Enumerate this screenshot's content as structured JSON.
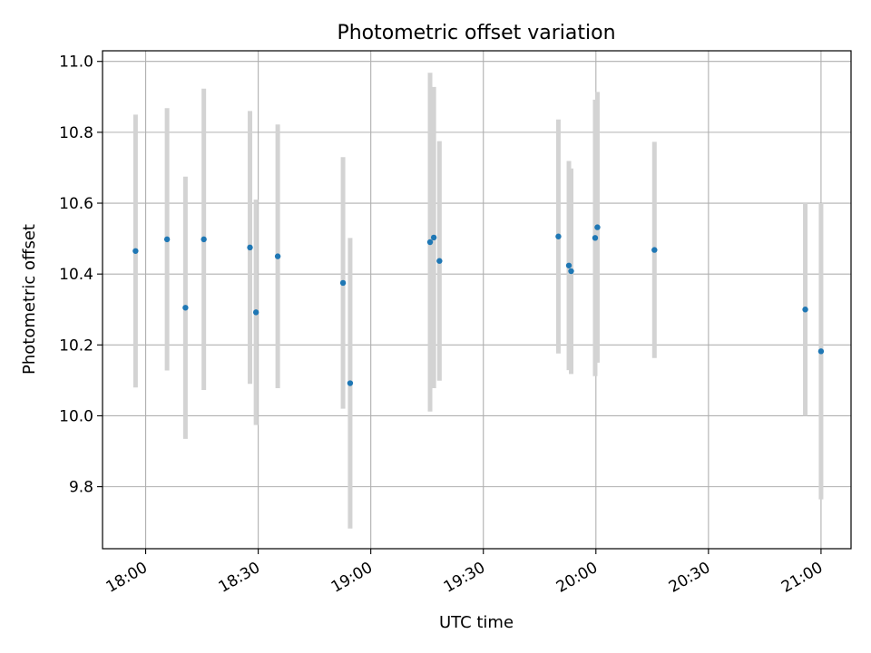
{
  "chart_data": {
    "type": "scatter",
    "title": "Photometric offset variation",
    "xlabel": "UTC time",
    "ylabel": "Photometric offset",
    "xlim_minutes": [
      1068.5,
      1268.0
    ],
    "ylim": [
      9.625,
      11.03
    ],
    "grid": true,
    "x_ticks": [
      {
        "minutes": 1080,
        "label": "18:00"
      },
      {
        "minutes": 1110,
        "label": "18:30"
      },
      {
        "minutes": 1140,
        "label": "19:00"
      },
      {
        "minutes": 1170,
        "label": "19:30"
      },
      {
        "minutes": 1200,
        "label": "20:00"
      },
      {
        "minutes": 1230,
        "label": "20:30"
      },
      {
        "minutes": 1260,
        "label": "21:00"
      }
    ],
    "y_ticks": [
      {
        "value": 9.8,
        "label": "9.8"
      },
      {
        "value": 10.0,
        "label": "10.0"
      },
      {
        "value": 10.2,
        "label": "10.2"
      },
      {
        "value": 10.4,
        "label": "10.4"
      },
      {
        "value": 10.6,
        "label": "10.6"
      },
      {
        "value": 10.8,
        "label": "10.8"
      },
      {
        "value": 11.0,
        "label": "11.0"
      }
    ],
    "series": [
      {
        "name": "offset",
        "point_color": "#1f77b4",
        "errorbar_color": "#d3d3d3",
        "points": [
          {
            "x": 1077.3,
            "y": 10.465,
            "yerr": 0.385
          },
          {
            "x": 1085.7,
            "y": 10.498,
            "yerr": 0.37
          },
          {
            "x": 1090.6,
            "y": 10.305,
            "yerr": 0.37
          },
          {
            "x": 1095.5,
            "y": 10.498,
            "yerr": 0.425
          },
          {
            "x": 1107.8,
            "y": 10.475,
            "yerr": 0.385
          },
          {
            "x": 1109.4,
            "y": 10.292,
            "yerr": 0.318
          },
          {
            "x": 1115.2,
            "y": 10.45,
            "yerr": 0.372
          },
          {
            "x": 1132.6,
            "y": 10.375,
            "yerr": 0.355
          },
          {
            "x": 1134.5,
            "y": 10.092,
            "yerr": 0.41
          },
          {
            "x": 1155.8,
            "y": 10.49,
            "yerr": 0.478
          },
          {
            "x": 1156.8,
            "y": 10.503,
            "yerr": 0.425
          },
          {
            "x": 1158.3,
            "y": 10.437,
            "yerr": 0.338
          },
          {
            "x": 1190.0,
            "y": 10.506,
            "yerr": 0.33
          },
          {
            "x": 1192.8,
            "y": 10.424,
            "yerr": 0.295
          },
          {
            "x": 1193.4,
            "y": 10.408,
            "yerr": 0.29
          },
          {
            "x": 1199.8,
            "y": 10.502,
            "yerr": 0.39
          },
          {
            "x": 1200.4,
            "y": 10.532,
            "yerr": 0.382
          },
          {
            "x": 1215.6,
            "y": 10.468,
            "yerr": 0.305
          },
          {
            "x": 1255.8,
            "y": 10.3,
            "yerr": 0.3
          },
          {
            "x": 1260.0,
            "y": 10.182,
            "yerr": 0.418
          }
        ]
      }
    ]
  }
}
